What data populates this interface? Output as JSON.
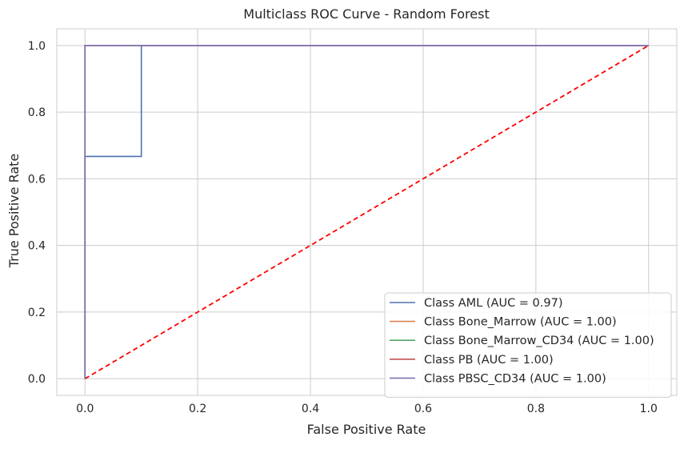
{
  "chart_data": {
    "type": "line",
    "title": "Multiclass ROC Curve - Random Forest",
    "xlabel": "False Positive Rate",
    "ylabel": "True Positive Rate",
    "xlim": [
      -0.05,
      1.05
    ],
    "ylim": [
      -0.05,
      1.05
    ],
    "xticks": [
      "0.0",
      "0.2",
      "0.4",
      "0.6",
      "0.8",
      "1.0"
    ],
    "yticks": [
      "0.0",
      "0.2",
      "0.4",
      "0.6",
      "0.8",
      "1.0"
    ],
    "grid": true,
    "legend_position": "lower right",
    "series": [
      {
        "name": "Class AML (AUC = 0.97)",
        "color": "#4c72b0",
        "x": [
          0.0,
          0.0,
          0.1,
          0.1,
          1.0
        ],
        "y": [
          0.0,
          0.667,
          0.667,
          1.0,
          1.0
        ]
      },
      {
        "name": "Class Bone_Marrow (AUC = 1.00)",
        "color": "#dd8452",
        "x": [
          0.0,
          0.0,
          1.0
        ],
        "y": [
          0.0,
          1.0,
          1.0
        ]
      },
      {
        "name": "Class Bone_Marrow_CD34 (AUC = 1.00)",
        "color": "#55a868",
        "x": [
          0.0,
          0.0,
          1.0
        ],
        "y": [
          0.0,
          1.0,
          1.0
        ]
      },
      {
        "name": "Class PB (AUC = 1.00)",
        "color": "#c44e52",
        "x": [
          0.0,
          0.0,
          1.0
        ],
        "y": [
          0.0,
          1.0,
          1.0
        ]
      },
      {
        "name": "Class PBSC_CD34 (AUC = 1.00)",
        "color": "#8172b3",
        "x": [
          0.0,
          0.0,
          1.0
        ],
        "y": [
          0.0,
          1.0,
          1.0
        ]
      }
    ],
    "reference_line": {
      "x": [
        0,
        1
      ],
      "y": [
        0,
        1
      ],
      "color": "#ff0000",
      "style": "dashed"
    }
  }
}
